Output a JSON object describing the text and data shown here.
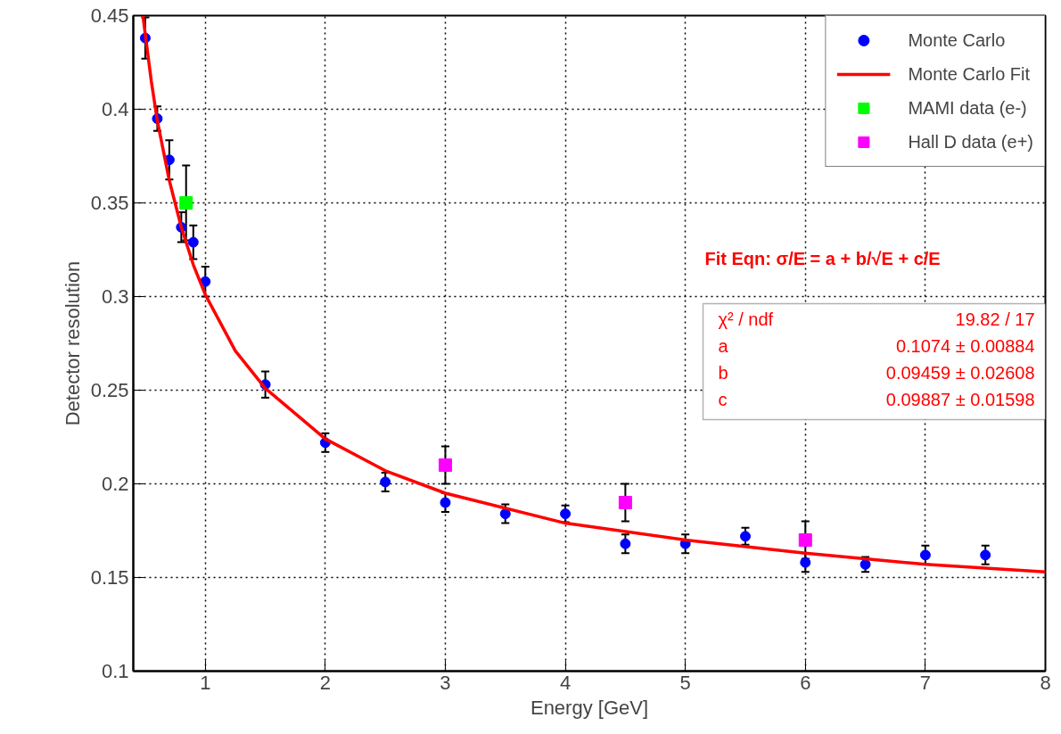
{
  "chart_data": {
    "type": "scatter",
    "xlabel": "Energy [GeV]",
    "ylabel": "Detector resolution",
    "xlim": [
      0.4,
      8
    ],
    "ylim": [
      0.1,
      0.45
    ],
    "xticks": [
      1,
      2,
      3,
      4,
      5,
      6,
      7,
      8
    ],
    "yticks": [
      0.1,
      0.15,
      0.2,
      0.25,
      0.3,
      0.35,
      0.4,
      0.45
    ],
    "grid": true,
    "legend": "top right",
    "series": [
      {
        "name": "Monte Carlo",
        "marker": "circle",
        "color": "#0000ff",
        "x": [
          0.5,
          0.6,
          0.7,
          0.8,
          0.9,
          1.0,
          1.5,
          2,
          2.5,
          3,
          3.5,
          4,
          4.5,
          5,
          5.5,
          6,
          6.5,
          7,
          7.5
        ],
        "values": [
          0.438,
          0.395,
          0.373,
          0.337,
          0.329,
          0.308,
          0.253,
          0.222,
          0.201,
          0.19,
          0.184,
          0.184,
          0.168,
          0.168,
          0.172,
          0.158,
          0.157,
          0.162,
          0.162
        ],
        "errors": [
          0.011,
          0.0065,
          0.0105,
          0.008,
          0.009,
          0.008,
          0.007,
          0.005,
          0.005,
          0.005,
          0.005,
          0.0045,
          0.005,
          0.005,
          0.0045,
          0.005,
          0.004,
          0.005,
          0.005
        ]
      },
      {
        "name": "Monte Carlo Fit",
        "type": "line",
        "marker": "none",
        "line_style": "solid",
        "color": "#ff0000",
        "x": [
          0.48,
          0.55,
          0.6,
          0.7,
          0.8,
          0.9,
          1.0,
          1.25,
          1.5,
          2,
          2.5,
          3,
          4,
          5,
          6,
          7,
          8
        ],
        "values": [
          0.45,
          0.415,
          0.394,
          0.362,
          0.337,
          0.317,
          0.301,
          0.271,
          0.251,
          0.224,
          0.207,
          0.195,
          0.179,
          0.17,
          0.163,
          0.157,
          0.153
        ]
      },
      {
        "name": "MAMI data (e-)",
        "marker": "square",
        "color": "#00ff00",
        "x": [
          0.84
        ],
        "values": [
          0.35
        ],
        "errors": [
          0.02
        ]
      },
      {
        "name": "Hall D data (e+)",
        "marker": "square",
        "color": "#ff00ff",
        "x": [
          3,
          4.5,
          6
        ],
        "values": [
          0.21,
          0.19,
          0.17
        ],
        "errors": [
          0.01,
          0.01,
          0.01
        ]
      }
    ],
    "annotations": [
      "Fit Eqn: σ/E = a + b/√E + c/E",
      "χ² / ndf",
      "19.82 / 17",
      "a",
      "0.1074 ± 0.00884",
      "b",
      "0.09459 ± 0.02608",
      "c",
      "0.09887 ± 0.01598"
    ]
  }
}
